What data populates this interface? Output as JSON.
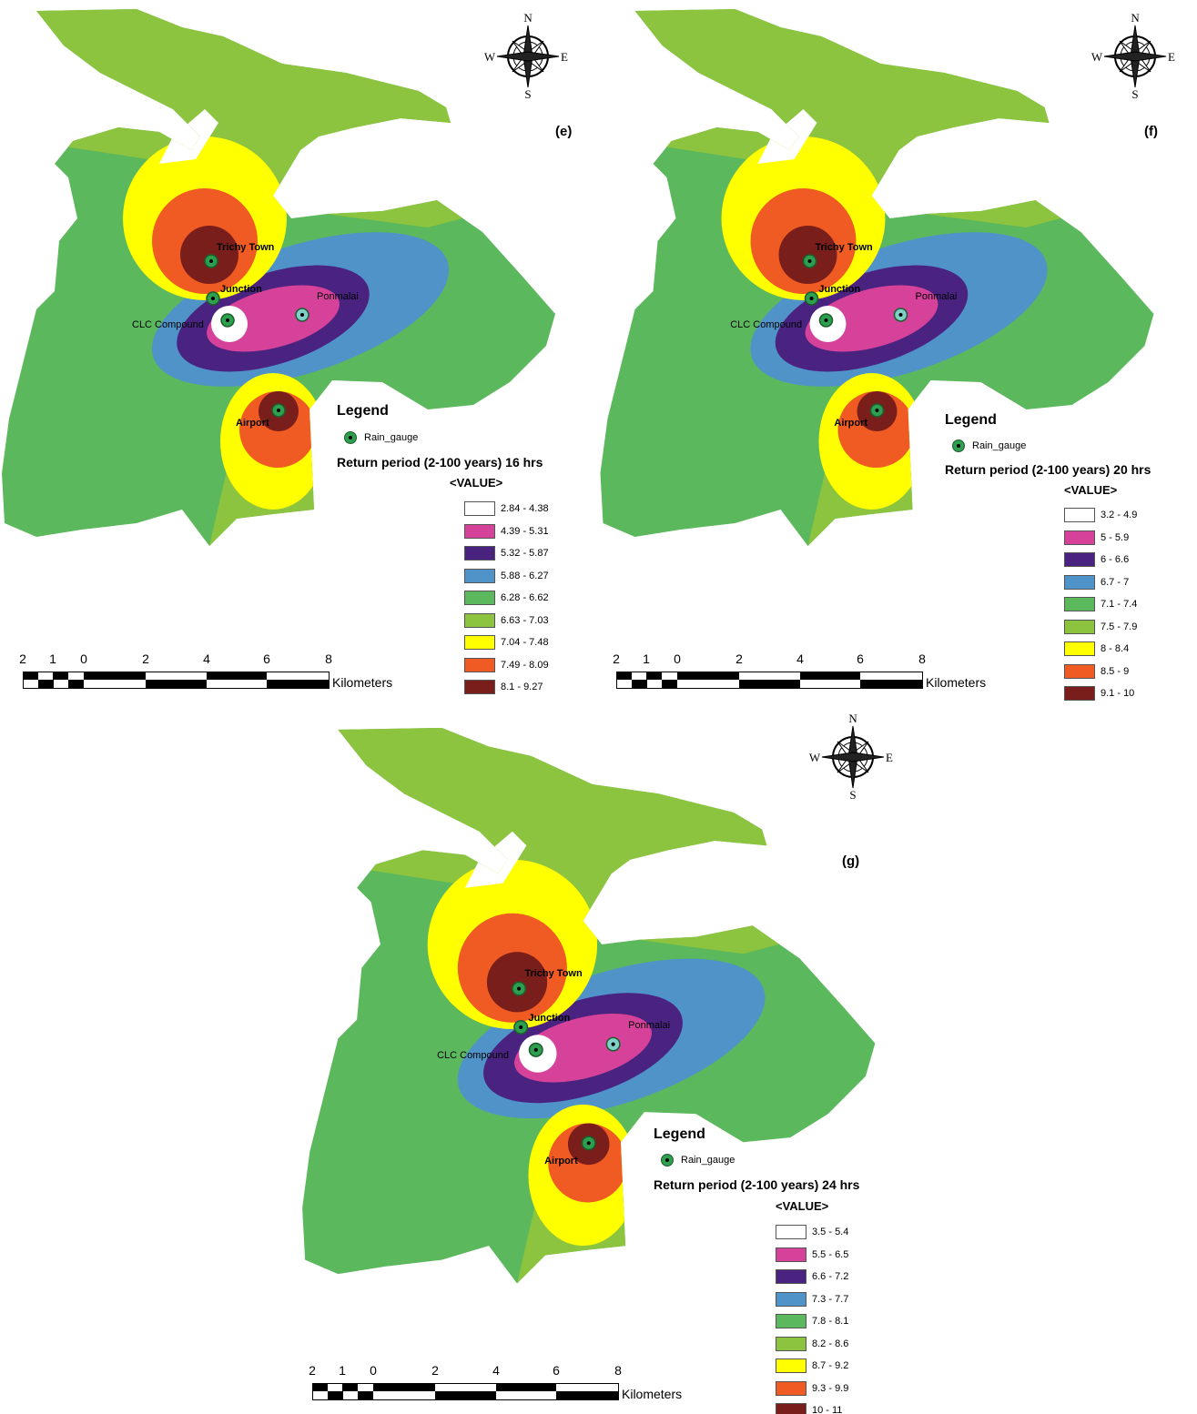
{
  "gauges": [
    "Trichy Town",
    "Junction",
    "CLC Compound",
    "Ponmalai",
    "Airport"
  ],
  "legend_title": "Legend",
  "gauge_legend_label": "Rain_gauge",
  "value_header": "<VALUE>",
  "scale": {
    "ticks": [
      "2",
      "1",
      "0",
      "2",
      "4",
      "6",
      "8"
    ],
    "unit": "Kilometers"
  },
  "compass": {
    "n": "N",
    "s": "S",
    "e": "E",
    "w": "W"
  },
  "colors": [
    "#ffffff",
    "#d6419a",
    "#4a2381",
    "#4f93c9",
    "#5cb85c",
    "#8cc43f",
    "#ffff00",
    "#f05a23",
    "#7a1e1b"
  ],
  "panels": [
    {
      "tag": "(e)",
      "subtitle": "Return period (2-100 years) 16 hrs",
      "classes": [
        "2.84 - 4.38",
        "4.39 - 5.31",
        "5.32 - 5.87",
        "5.88 - 6.27",
        "6.28 - 6.62",
        "6.63 - 7.03",
        "7.04 - 7.48",
        "7.49 - 8.09",
        "8.1 - 9.27"
      ]
    },
    {
      "tag": "(f)",
      "subtitle": "Return period (2-100 years) 20 hrs",
      "classes": [
        "3.2 - 4.9",
        "5 - 5.9",
        "6 - 6.6",
        "6.7 - 7",
        "7.1 - 7.4",
        "7.5 - 7.9",
        "8 - 8.4",
        "8.5 - 9",
        "9.1 - 10"
      ]
    },
    {
      "tag": "(g)",
      "subtitle": "Return period (2-100 years) 24 hrs",
      "classes": [
        "3.5 - 5.4",
        "5.5 - 6.5",
        "6.6 - 7.2",
        "7.3 - 7.7",
        "7.8 - 8.1",
        "8.2 - 8.6",
        "8.7 - 9.2",
        "9.3 - 9.9",
        "10 - 11"
      ]
    }
  ]
}
